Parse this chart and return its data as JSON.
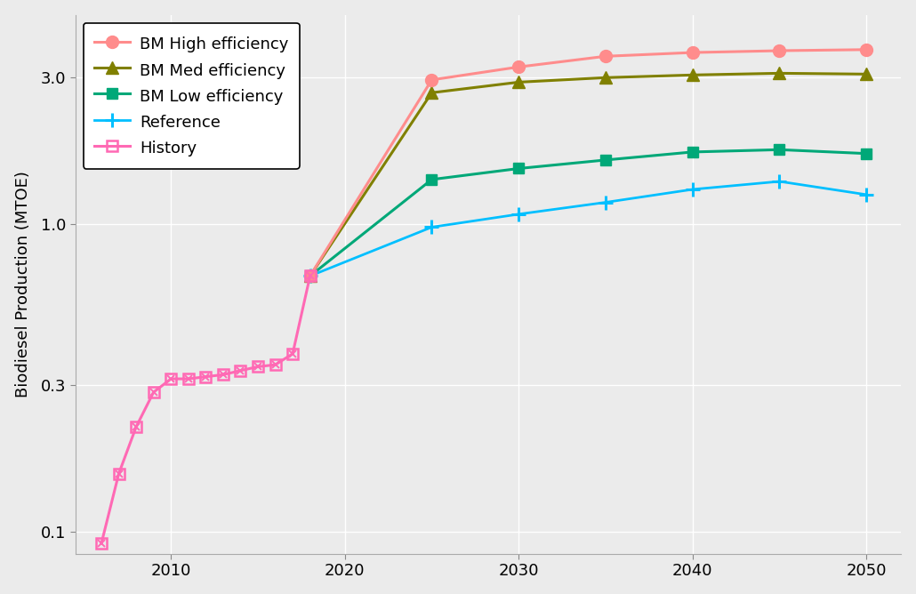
{
  "ylabel": "Biodiesel Production (MTOE)",
  "background_color": "#EBEBEB",
  "grid_color": "#FFFFFF",
  "series": {
    "high": {
      "label": "BM High efficiency",
      "color": "#FF8C8C",
      "marker": "o",
      "x": [
        2018,
        2025,
        2030,
        2035,
        2040,
        2045,
        2050
      ],
      "y": [
        0.68,
        2.95,
        3.25,
        3.52,
        3.62,
        3.67,
        3.7
      ]
    },
    "med": {
      "label": "BM Med efficiency",
      "color": "#808000",
      "marker": "^",
      "x": [
        2018,
        2025,
        2030,
        2035,
        2040,
        2045,
        2050
      ],
      "y": [
        0.68,
        2.68,
        2.9,
        3.0,
        3.06,
        3.1,
        3.08
      ]
    },
    "low": {
      "label": "BM Low efficiency",
      "color": "#00A878",
      "marker": "s",
      "x": [
        2018,
        2025,
        2030,
        2035,
        2040,
        2045,
        2050
      ],
      "y": [
        0.68,
        1.4,
        1.52,
        1.62,
        1.72,
        1.75,
        1.7
      ]
    },
    "ref": {
      "label": "Reference",
      "color": "#00BFFF",
      "marker": "+",
      "x": [
        2018,
        2025,
        2030,
        2035,
        2040,
        2045,
        2050
      ],
      "y": [
        0.68,
        0.98,
        1.08,
        1.18,
        1.3,
        1.38,
        1.25
      ]
    },
    "history": {
      "label": "History",
      "color": "#FF69B4",
      "x": [
        2006,
        2007,
        2008,
        2009,
        2010,
        2011,
        2012,
        2013,
        2014,
        2015,
        2016,
        2017,
        2018
      ],
      "y": [
        0.092,
        0.155,
        0.22,
        0.285,
        0.315,
        0.315,
        0.32,
        0.325,
        0.335,
        0.345,
        0.35,
        0.38,
        0.68
      ]
    }
  },
  "xlim": [
    2004.5,
    2052
  ],
  "ylim_log_min": 0.085,
  "ylim_log_max": 4.8,
  "yticks": [
    0.1,
    0.3,
    1.0,
    3.0
  ],
  "ytick_labels": [
    "0.1",
    "0.3",
    "1.0",
    "3.0"
  ],
  "xticks": [
    2010,
    2020,
    2030,
    2040,
    2050
  ],
  "legend_fontsize": 13,
  "axis_fontsize": 13,
  "tick_fontsize": 13
}
